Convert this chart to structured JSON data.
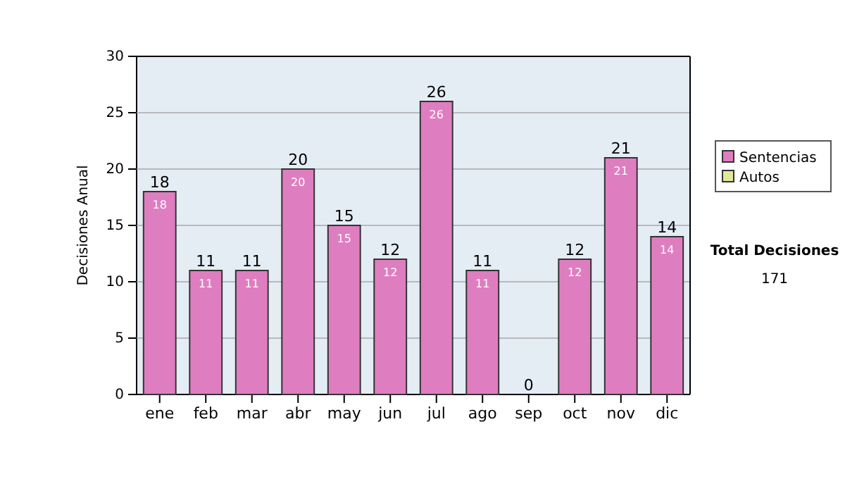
{
  "chart_data": {
    "type": "bar",
    "ylabel": "Decisiones Anual",
    "categories": [
      "ene",
      "feb",
      "mar",
      "abr",
      "may",
      "jun",
      "jul",
      "ago",
      "sep",
      "oct",
      "nov",
      "dic"
    ],
    "series": [
      {
        "name": "Sentencias",
        "color": "#de7ec0",
        "values": [
          18,
          11,
          11,
          20,
          15,
          12,
          26,
          11,
          0,
          12,
          21,
          14
        ],
        "value_labels": [
          "18",
          "11",
          "11",
          "20",
          "15",
          "12",
          "26",
          "11",
          null,
          "12",
          "21",
          "14"
        ]
      },
      {
        "name": "Autos",
        "color": "#dfe89a",
        "values": [
          0,
          0,
          0,
          0,
          0,
          0,
          0,
          0,
          0,
          0,
          0,
          0
        ]
      }
    ],
    "stacked": true,
    "totals": [
      "18",
      "11",
      "11",
      "20",
      "15",
      "12",
      "26",
      "11",
      "0",
      "12",
      "21",
      "14"
    ],
    "ylim": [
      0,
      30
    ],
    "yticks": [
      0,
      5,
      10,
      15,
      20,
      25,
      30
    ],
    "grid": "y",
    "legend": "right",
    "annotations": [
      "Total Decisiones",
      "171"
    ]
  }
}
